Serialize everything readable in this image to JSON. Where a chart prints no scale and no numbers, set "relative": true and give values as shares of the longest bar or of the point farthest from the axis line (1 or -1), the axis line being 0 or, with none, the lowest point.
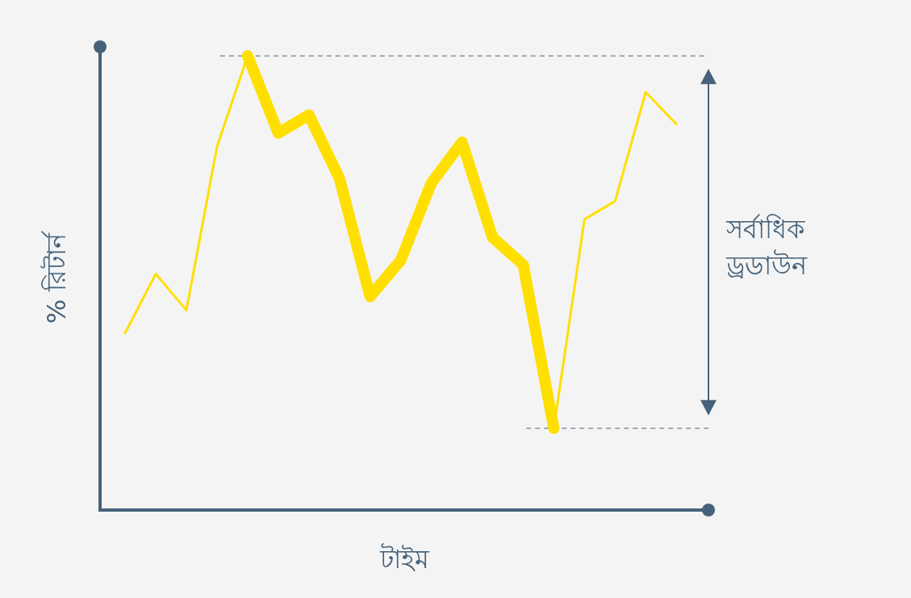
{
  "chart_data": {
    "type": "line",
    "relative": true,
    "xlabel": "টাইম",
    "ylabel": "% রিটার্ন",
    "annotations": [
      "সর্বাধিক ড্রডাউন"
    ],
    "categories": [
      null,
      null,
      null,
      null,
      null,
      null,
      null,
      null,
      null,
      null,
      null,
      null,
      null,
      null,
      null,
      null,
      null,
      null,
      null
    ],
    "series": [
      {
        "color": "#ffdf00",
        "values": [
          0.39,
          0.52,
          0.44,
          0.8,
          1,
          0.83,
          0.87,
          0.73,
          0.47,
          0.55,
          0.72,
          0.81,
          0.6,
          0.54,
          0.18,
          0.64,
          0.68,
          0.92,
          0.85
        ]
      },
      {
        "color": "#ffdf00",
        "values": [
          null,
          null,
          null,
          null,
          1,
          0.83,
          0.87,
          0.73,
          0.47,
          0.55,
          0.72,
          0.81,
          0.6,
          0.54,
          0.18,
          null,
          null,
          null,
          null
        ]
      }
    ],
    "ref_lines": [
      {
        "axis": "y",
        "value": 1,
        "color": "#46627a",
        "line_style": "dashed"
      },
      {
        "axis": "y",
        "value": 0.18,
        "color": "#46627a",
        "line_style": "dashed"
      }
    ]
  }
}
